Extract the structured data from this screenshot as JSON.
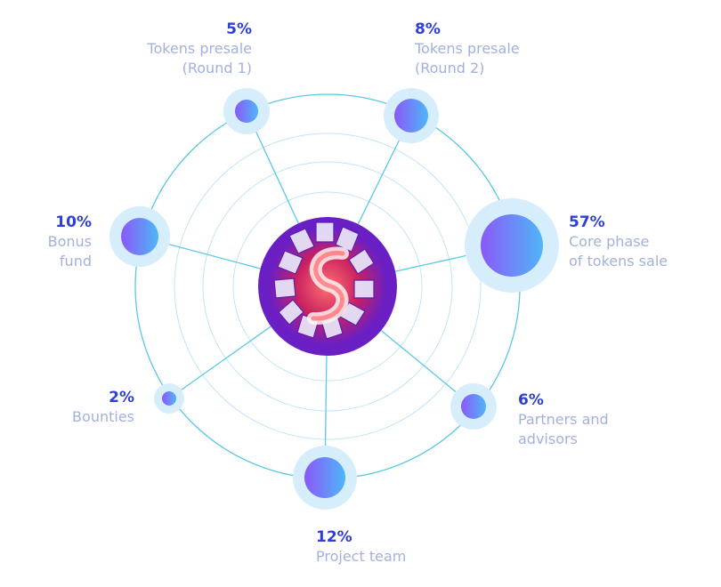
{
  "segments": [
    {
      "id": "presale-1",
      "percent": "5%",
      "lines": [
        "Tokens presale",
        "(Round 1)"
      ]
    },
    {
      "id": "presale-2",
      "percent": "8%",
      "lines": [
        "Tokens presale",
        "(Round 2)"
      ]
    },
    {
      "id": "core-phase",
      "percent": "57%",
      "lines": [
        "Core phase",
        "of tokens sale"
      ]
    },
    {
      "id": "partners",
      "percent": "6%",
      "lines": [
        "Partners and",
        "advisors"
      ]
    },
    {
      "id": "project-team",
      "percent": "12%",
      "lines": [
        "Project team"
      ]
    },
    {
      "id": "bounties",
      "percent": "2%",
      "lines": [
        "Bounties"
      ]
    },
    {
      "id": "bonus-fund",
      "percent": "10%",
      "lines": [
        "Bonus",
        "fund"
      ]
    }
  ],
  "colors": {
    "line": "#5bc7ea",
    "ring": "#a9ddf2",
    "halo": "#d6eefb",
    "node_start": "#8a59f7",
    "node_end": "#4fb6f9",
    "percent_text": "#2f3fd6",
    "label_text": "#a3b1dd",
    "logo_outer": "#6a1fc4",
    "logo_inner": "#d42a5a"
  },
  "center_logo": {
    "icon": "ribbon-s-logo"
  }
}
